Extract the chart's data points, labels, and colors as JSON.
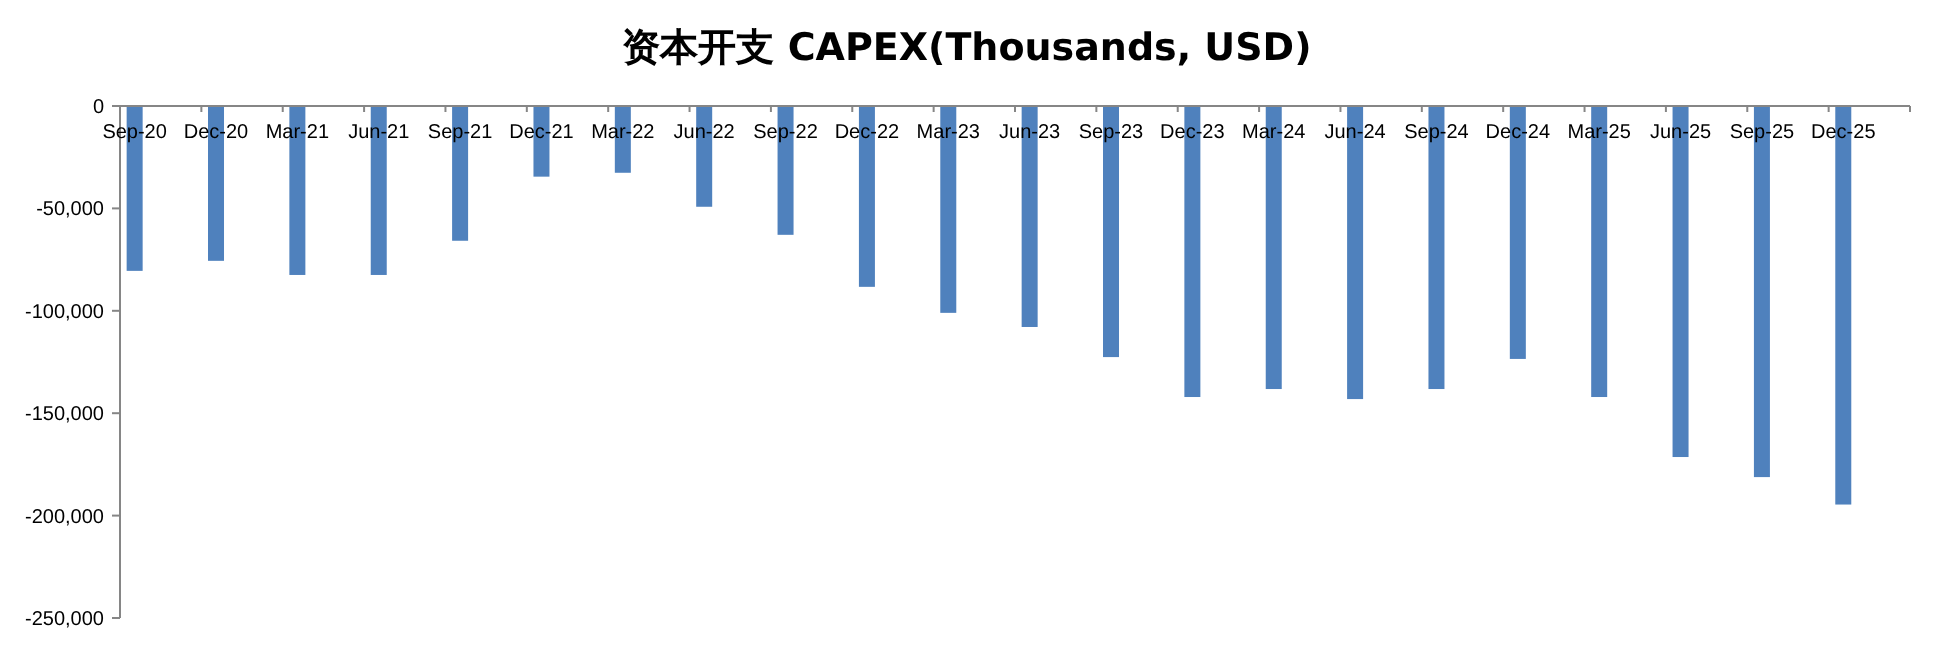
{
  "chart_data": {
    "type": "bar",
    "title": "资本开支 CAPEX(Thousands, USD)",
    "categories": [
      "Sep-20",
      "Dec-20",
      "Mar-21",
      "Jun-21",
      "Sep-21",
      "Dec-21",
      "Mar-22",
      "Jun-22",
      "Sep-22",
      "Dec-22",
      "Mar-23",
      "Jun-23",
      "Sep-23",
      "Dec-23",
      "Mar-24",
      "Jun-24",
      "Sep-24",
      "Dec-24",
      "Mar-25",
      "Jun-25",
      "Sep-25",
      "Dec-25"
    ],
    "values": [
      -80500,
      -75600,
      -82500,
      -82500,
      -65800,
      -34500,
      -32600,
      -49200,
      -62900,
      -88300,
      -101000,
      -107900,
      -122600,
      -142100,
      -138200,
      -143100,
      -138200,
      -123500,
      -142100,
      -171400,
      -181200,
      -194600
    ],
    "color": "#4f81bd",
    "ylim": [
      -250000,
      0
    ],
    "yticks": [
      {
        "value": -250000,
        "label": "-250,000"
      },
      {
        "value": -200000,
        "label": "-200,000"
      },
      {
        "value": -150000,
        "label": "-150,000"
      },
      {
        "value": -100000,
        "label": "-100,000"
      },
      {
        "value": -50000,
        "label": "-50,000"
      },
      0
    ],
    "grid": false
  }
}
